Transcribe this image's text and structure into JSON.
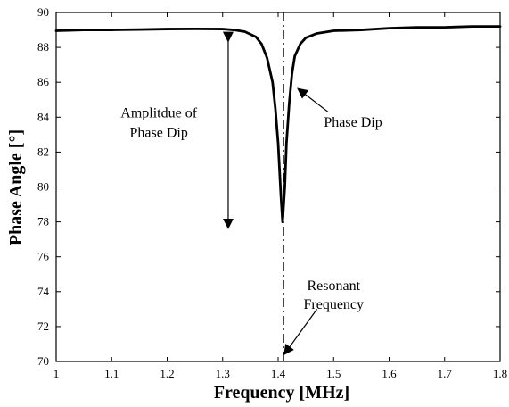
{
  "chart_data": {
    "type": "line",
    "title": "",
    "xlabel": "Frequency [MHz]",
    "ylabel": "Phase Angle [°]",
    "xlim": [
      1.0,
      1.8
    ],
    "ylim": [
      70,
      90
    ],
    "xticks": [
      "1",
      "1.1",
      "1.2",
      "1.3",
      "1.4",
      "1.5",
      "1.6",
      "1.7",
      "1.8"
    ],
    "yticks": [
      "70",
      "72",
      "74",
      "76",
      "78",
      "80",
      "82",
      "84",
      "86",
      "88",
      "90"
    ],
    "grid": false,
    "series": [
      {
        "x": [
          1.0,
          1.05,
          1.1,
          1.15,
          1.2,
          1.25,
          1.3,
          1.32,
          1.34,
          1.36,
          1.37,
          1.38,
          1.39,
          1.395,
          1.4,
          1.405,
          1.408,
          1.412,
          1.415,
          1.42,
          1.425,
          1.43,
          1.44,
          1.45,
          1.47,
          1.5,
          1.55,
          1.6,
          1.65,
          1.7,
          1.75,
          1.8
        ],
        "y": [
          88.95,
          89.0,
          89.0,
          89.02,
          89.05,
          89.06,
          89.05,
          89.0,
          88.9,
          88.6,
          88.2,
          87.4,
          86.0,
          84.5,
          82.5,
          79.5,
          78.0,
          80.0,
          82.5,
          84.8,
          86.5,
          87.5,
          88.2,
          88.55,
          88.8,
          88.95,
          89.0,
          89.1,
          89.15,
          89.15,
          89.2,
          89.2
        ]
      }
    ],
    "reference_line": {
      "x": 1.41,
      "style": "dash-dot"
    },
    "annotations": [
      {
        "lines": [
          "Amplitdue of",
          "Phase Dip"
        ]
      },
      {
        "lines": [
          "Phase Dip"
        ]
      },
      {
        "lines": [
          "Resonant",
          "Frequency"
        ]
      }
    ]
  }
}
